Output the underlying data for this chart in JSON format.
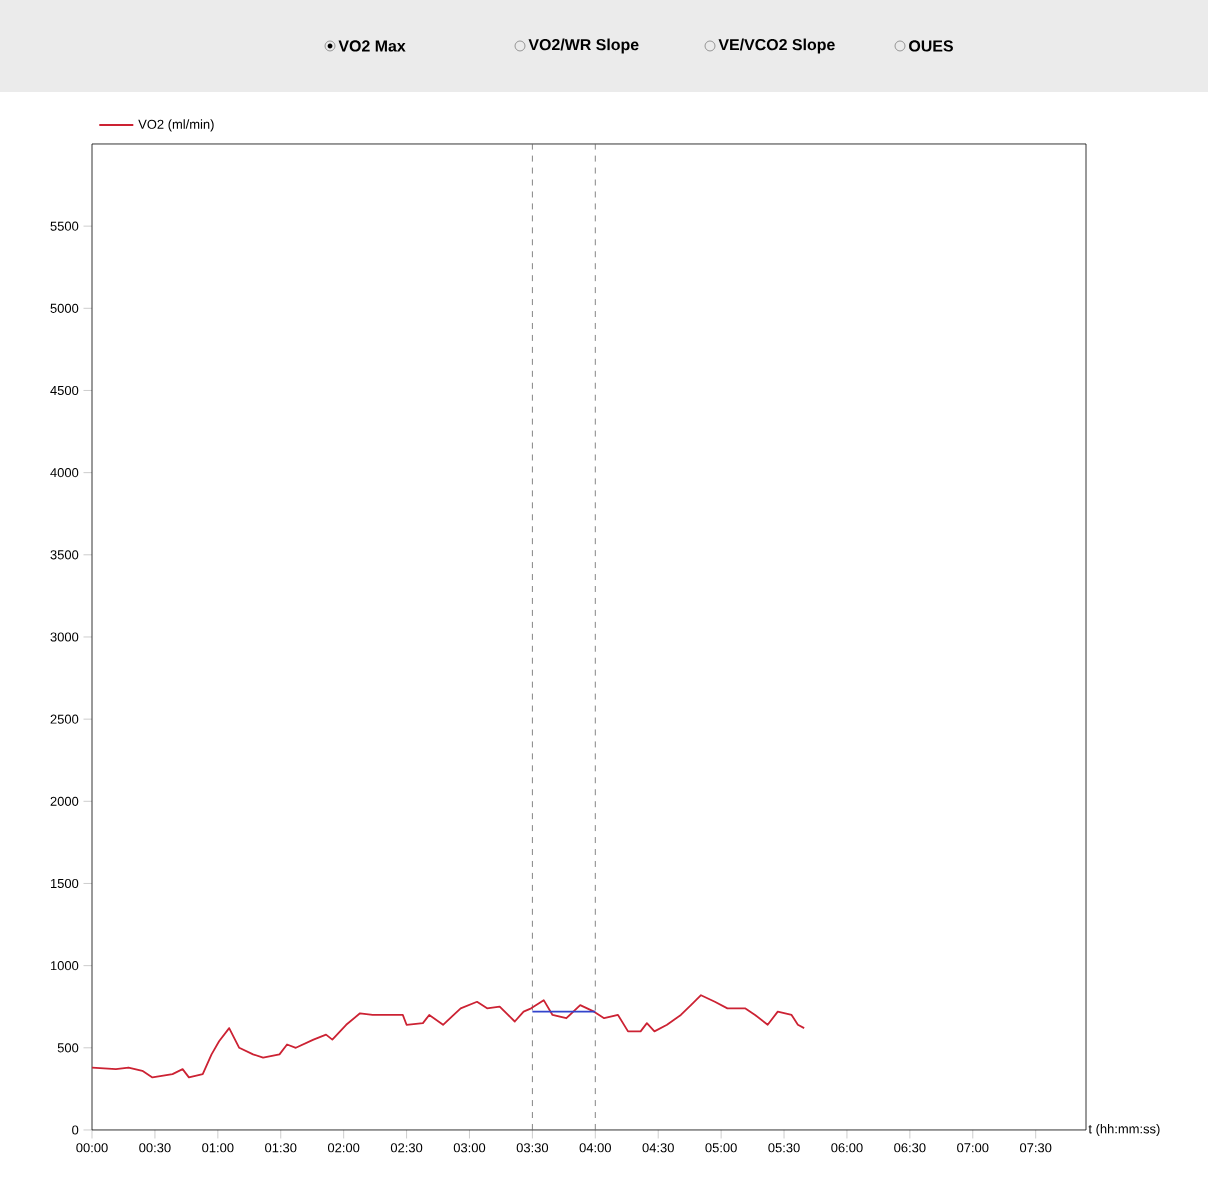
{
  "chart_data": {
    "type": "line",
    "annotations": [
      "VO2 Max",
      "VO2/WR Slope",
      "VE/VCO2 Slope",
      "OUES"
    ],
    "xlabel": "t (hh:mm:ss)",
    "xlim": [
      0,
      7.9
    ],
    "ylim": [
      0,
      6000
    ],
    "xticks": [
      {
        "value": 0,
        "label": "00:00"
      },
      {
        "value": 0.5,
        "label": "00:30"
      },
      {
        "value": 1,
        "label": "01:00"
      },
      {
        "value": 1.5,
        "label": "01:30"
      },
      {
        "value": 2,
        "label": "02:00"
      },
      {
        "value": 2.5,
        "label": "02:30"
      },
      {
        "value": 3,
        "label": "03:00"
      },
      {
        "value": 3.5,
        "label": "03:30"
      },
      {
        "value": 4,
        "label": "04:00"
      },
      {
        "value": 4.5,
        "label": "04:30"
      },
      {
        "value": 5,
        "label": "05:00"
      },
      {
        "value": 5.5,
        "label": "05:30"
      },
      {
        "value": 6,
        "label": "06:00"
      },
      {
        "value": 6.5,
        "label": "06:30"
      },
      {
        "value": 7,
        "label": "07:00"
      },
      {
        "value": 7.5,
        "label": "07:30"
      }
    ],
    "yticks": [
      0,
      500,
      1000,
      1500,
      2000,
      2500,
      3000,
      3500,
      4000,
      4500,
      5000,
      5500
    ],
    "grid": false,
    "legend": "top left",
    "marker": "none",
    "line_style": "solid",
    "ref_lines": [
      {
        "axis": "x",
        "value": 3.5,
        "color": "#666666",
        "line_style": "dashed"
      },
      {
        "axis": "x",
        "value": 4.0,
        "color": "#666666",
        "line_style": "dashed"
      }
    ],
    "series": [
      {
        "name": "VO2 (ml/min)",
        "color": "#cc2233",
        "x": [
          0,
          0.19,
          0.29,
          0.4,
          0.48,
          0.64,
          0.72,
          0.77,
          0.88,
          0.95,
          1.01,
          1.09,
          1.17,
          1.28,
          1.36,
          1.49,
          1.55,
          1.62,
          1.76,
          1.86,
          1.91,
          2.02,
          2.13,
          2.23,
          2.36,
          2.47,
          2.5,
          2.63,
          2.68,
          2.79,
          2.93,
          3.06,
          3.14,
          3.24,
          3.36,
          3.43,
          3.49,
          3.59,
          3.66,
          3.77,
          3.88,
          3.99,
          4.07,
          4.18,
          4.26,
          4.36,
          4.41,
          4.47,
          4.57,
          4.68,
          4.76,
          4.84,
          4.95,
          5.05,
          5.19,
          5.27,
          5.37,
          5.45,
          5.56,
          5.61,
          5.66
        ],
        "values": [
          380,
          370,
          380,
          360,
          320,
          340,
          370,
          320,
          340,
          460,
          540,
          620,
          500,
          460,
          440,
          460,
          520,
          500,
          550,
          580,
          550,
          640,
          710,
          700,
          700,
          700,
          640,
          650,
          700,
          640,
          740,
          780,
          740,
          750,
          660,
          720,
          740,
          790,
          700,
          680,
          760,
          720,
          680,
          700,
          600,
          600,
          650,
          600,
          640,
          700,
          760,
          820,
          780,
          740,
          740,
          700,
          640,
          720,
          700,
          640,
          620
        ]
      },
      {
        "color": "#3344cc",
        "x": [
          3.5,
          4.0
        ],
        "values": [
          720,
          720
        ]
      }
    ]
  }
}
